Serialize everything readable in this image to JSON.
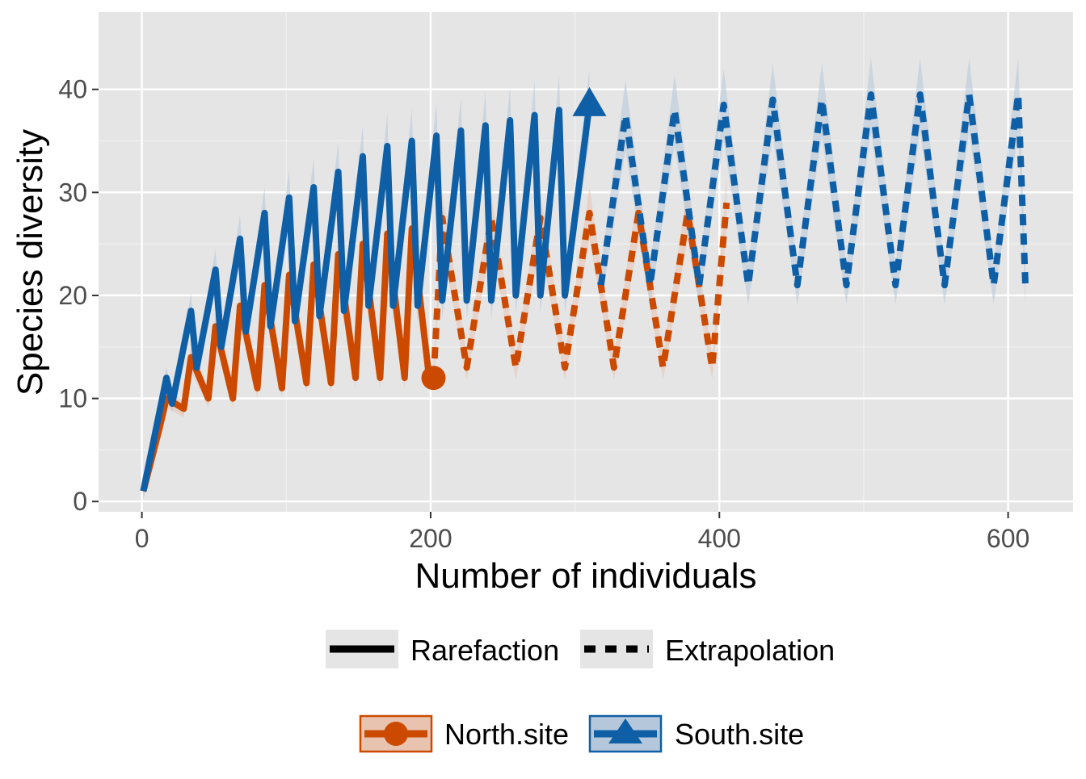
{
  "chart_data": {
    "type": "line",
    "title": "",
    "xlabel": "Number of individuals",
    "ylabel": "Species diversity",
    "xlim": [
      -30,
      645
    ],
    "ylim": [
      -1,
      47.5
    ],
    "x_ticks": [
      0,
      200,
      400,
      600
    ],
    "y_ticks": [
      0,
      10,
      20,
      30,
      40
    ],
    "x_tick_labels": [
      "0",
      "200",
      "400",
      "600"
    ],
    "y_tick_labels": [
      "0",
      "10",
      "20",
      "30",
      "40"
    ],
    "grid": true,
    "legend_position": "bottom",
    "linetype_legend": [
      {
        "label": "Rarefaction",
        "style": "solid"
      },
      {
        "label": "Extrapolation",
        "style": "dashed"
      }
    ],
    "site_legend": [
      {
        "label": "North.site",
        "marker": "circle",
        "color": "#CC4A00",
        "fill": "#E8C3B0"
      },
      {
        "label": "South.site",
        "marker": "triangle",
        "color": "#0E5FA6",
        "fill": "#B5C8DB"
      }
    ],
    "series": [
      {
        "name": "North.site",
        "color": "#CC4A00",
        "rarefaction": {
          "x": [
            1,
            12,
            17,
            29,
            34,
            46,
            51,
            63,
            68,
            80,
            85,
            97,
            102,
            114,
            119,
            131,
            136,
            148,
            153,
            165,
            170,
            182,
            187,
            199,
            202
          ],
          "y": [
            1,
            7,
            10,
            9,
            14,
            10,
            17,
            10,
            19,
            11,
            21,
            11,
            22,
            11.5,
            23,
            11.5,
            24,
            12,
            25,
            12,
            26,
            12,
            26.5,
            12,
            12
          ]
        },
        "extrapolation": {
          "x": [
            202,
            208,
            225,
            242,
            259,
            276,
            293,
            310,
            327,
            344,
            361,
            378,
            395,
            405
          ],
          "y": [
            12,
            27.5,
            13,
            27.5,
            13,
            27.5,
            13,
            28,
            13,
            28,
            13,
            28,
            13,
            29
          ]
        },
        "observed_point": {
          "x": 202,
          "y": 12
        }
      },
      {
        "name": "South.site",
        "color": "#0E5FA6",
        "rarefaction": {
          "x": [
            1,
            17,
            21,
            34,
            38,
            51,
            55,
            68,
            72,
            85,
            89,
            102,
            106,
            119,
            123,
            136,
            140,
            153,
            157,
            170,
            174,
            187,
            191,
            204,
            208,
            221,
            225,
            238,
            242,
            255,
            259,
            272,
            276,
            289,
            293,
            310
          ],
          "y": [
            1,
            12,
            9.5,
            18.5,
            13,
            22.5,
            15,
            25.5,
            16.5,
            28,
            17,
            29.5,
            17.5,
            30.5,
            18,
            32,
            18.5,
            33.5,
            19,
            34.5,
            19,
            35,
            19,
            35.5,
            19.5,
            36,
            19.5,
            36.5,
            19.5,
            37,
            20,
            37.5,
            20,
            38,
            20,
            38.5
          ]
        },
        "extrapolation": {
          "x": [
            318,
            335,
            352,
            369,
            386,
            403,
            420,
            437,
            454,
            471,
            488,
            505,
            522,
            539,
            556,
            573,
            590,
            607,
            612
          ],
          "y": [
            21,
            37.5,
            21,
            38,
            21,
            38.5,
            21,
            39,
            21,
            39,
            21,
            39.5,
            21,
            39.5,
            21,
            39.5,
            21,
            39.5,
            21
          ]
        },
        "observed_point": {
          "x": 310,
          "y": 38.5
        }
      }
    ]
  }
}
